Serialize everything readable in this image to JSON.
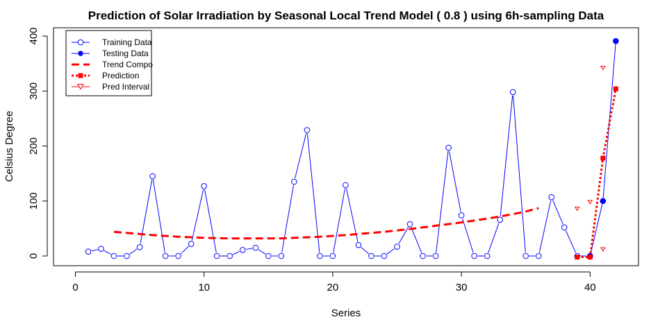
{
  "chart_data": {
    "type": "line",
    "title": "Prediction of Solar Irradiation by Seasonal Local Trend Model ( 0.8 ) using 6h-sampling Data",
    "xlabel": "Series",
    "ylabel": "Celsius Degree",
    "xlim": [
      -0.5,
      43
    ],
    "ylim": [
      -12,
      410
    ],
    "x_ticks": [
      0,
      10,
      20,
      30,
      40
    ],
    "y_ticks": [
      0,
      100,
      200,
      300,
      400
    ],
    "grid": false,
    "legend_position": "top-left",
    "colors": {
      "training": "#0000ff",
      "testing": "#0000ff",
      "trend": "#ff0000",
      "prediction": "#ff0000",
      "interval": "#ff0000"
    },
    "series": [
      {
        "name": "Training Data",
        "x": [
          1,
          2,
          3,
          4,
          5,
          6,
          7,
          8,
          9,
          10,
          11,
          12,
          13,
          14,
          15,
          16,
          17,
          18,
          19,
          20,
          21,
          22,
          23,
          24,
          25,
          26,
          27,
          28,
          29,
          30,
          31,
          32,
          33,
          34,
          35,
          36,
          37,
          38,
          39,
          40
        ],
        "values": [
          8,
          13,
          0,
          0,
          16,
          145,
          0,
          0,
          22,
          127,
          0,
          0,
          11,
          15,
          0,
          0,
          135,
          229,
          0,
          0,
          129,
          20,
          0,
          0,
          17,
          58,
          0,
          0,
          197,
          74,
          0,
          0,
          66,
          298,
          0,
          0,
          107,
          52,
          0,
          0
        ]
      },
      {
        "name": "Testing Data",
        "x": [
          40,
          41,
          42
        ],
        "values": [
          0,
          100,
          391
        ]
      },
      {
        "name": "Trend Compo",
        "x": [
          3,
          4,
          5,
          6,
          7,
          8,
          9,
          10,
          11,
          12,
          13,
          14,
          15,
          16,
          17,
          18,
          19,
          20,
          21,
          22,
          23,
          24,
          25,
          26,
          27,
          28,
          29,
          30,
          31,
          32,
          33,
          34,
          35,
          36
        ],
        "values": [
          44,
          42,
          40,
          38,
          36.5,
          35,
          34,
          33,
          32.5,
          32,
          32,
          32,
          32,
          32,
          33,
          34,
          35,
          36.5,
          38,
          40,
          42,
          44,
          46.5,
          49,
          52,
          55,
          58,
          61,
          64.5,
          68,
          72,
          76,
          81,
          87
        ]
      },
      {
        "name": "Prediction",
        "x": [
          39,
          40,
          41,
          42
        ],
        "values": [
          -2,
          -2,
          178,
          304
        ]
      },
      {
        "name": "Pred Interval",
        "x": [
          39,
          40,
          41,
          41
        ],
        "values": [
          86,
          98,
          342,
          12
        ]
      }
    ]
  }
}
